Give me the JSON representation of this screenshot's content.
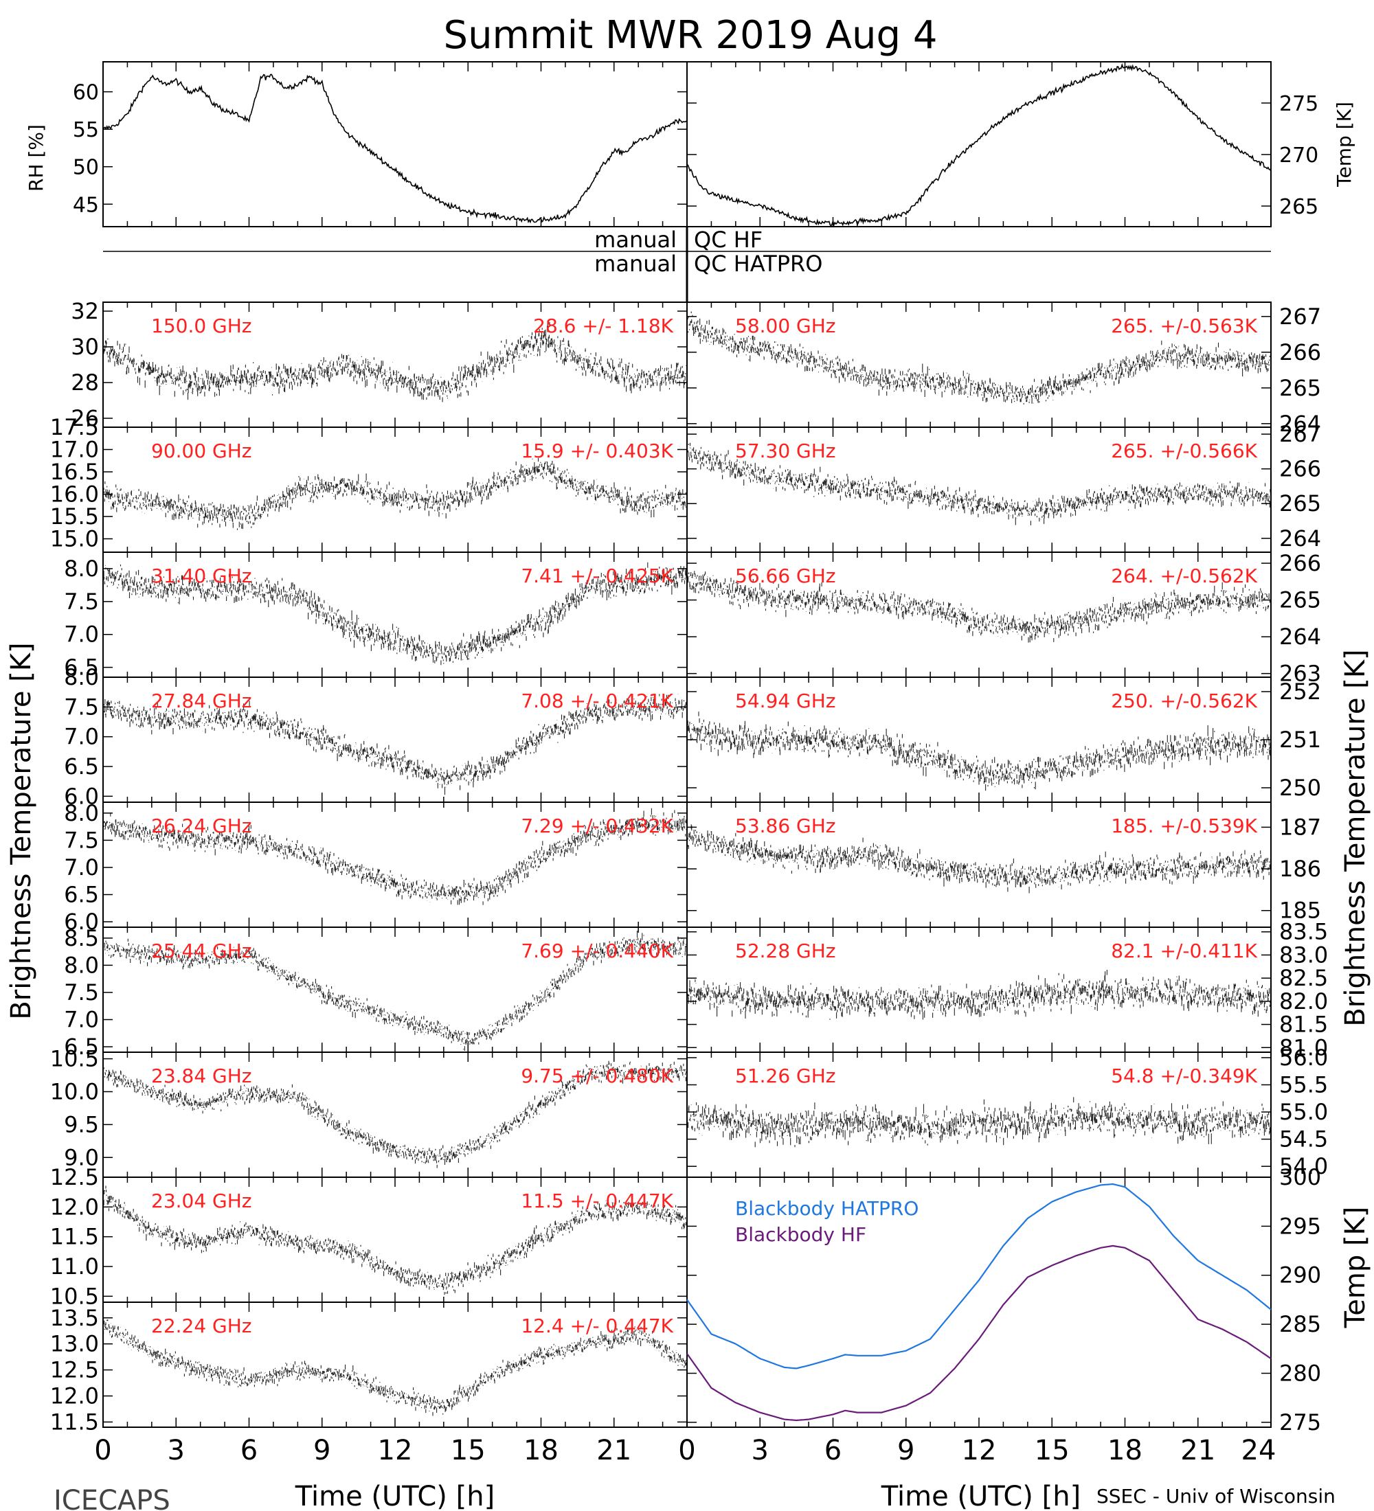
{
  "title": "Summit MWR 2019 Aug  4",
  "footer": {
    "left": "ICECAPS",
    "right": "SSEC - Univ of Wisconsin"
  },
  "qc": {
    "line1_left": "manual",
    "line1_right": "QC HF",
    "line2_left": "manual",
    "line2_right": "QC HATPRO"
  },
  "labels": {
    "xlabel": "Time (UTC) [h]",
    "ylabel_left": "Brightness Temperature [K]",
    "ylabel_right": "Brightness Temperature [K]",
    "rh_ylabel": "RH [%]",
    "temp_ylabel": "Temp [K]",
    "bb_ylabel": "Temp [K]",
    "xticks_left": [
      "0",
      "3",
      "6",
      "9",
      "12",
      "15",
      "18",
      "21"
    ],
    "xticks_right": [
      "0",
      "3",
      "6",
      "9",
      "12",
      "15",
      "18",
      "21",
      "24"
    ]
  },
  "colors": {
    "annotation": "#ff2020",
    "blackbody_hatpro": "#1f77e0",
    "blackbody_hf": "#6a1b7a",
    "data": "#000000"
  },
  "chart_data": [
    {
      "id": "rh",
      "type": "line",
      "ylabel": "RH [%]",
      "xlim": [
        0,
        24
      ],
      "ylim": [
        42,
        64
      ],
      "yticks": [
        45,
        50,
        55,
        60
      ],
      "x": [
        0,
        0.5,
        1,
        1.5,
        2,
        2.5,
        3,
        3.5,
        4,
        4.5,
        5,
        5.5,
        6,
        6.5,
        7,
        7.5,
        8,
        8.5,
        9,
        9.5,
        10,
        11,
        12,
        13,
        14,
        15,
        16,
        17,
        18,
        18.5,
        19,
        19.5,
        20,
        20.5,
        21,
        21.5,
        22,
        22.5,
        23,
        23.5,
        24
      ],
      "y": [
        55,
        55.5,
        57,
        60,
        62,
        61,
        61.5,
        60,
        60.5,
        58.5,
        57.5,
        57,
        56,
        62,
        62,
        60.5,
        61,
        62,
        61,
        57,
        54.5,
        52,
        49.5,
        47,
        45,
        44,
        43.5,
        43,
        42.8,
        43,
        43.5,
        45,
        47.5,
        50,
        52,
        52,
        53.5,
        54,
        55,
        56,
        56
      ]
    },
    {
      "id": "temp",
      "type": "line",
      "ylabel": "Temp [K]",
      "xlim": [
        0,
        24
      ],
      "ylim": [
        263,
        279
      ],
      "yticks": [
        265,
        270,
        275
      ],
      "x": [
        0,
        0.5,
        1,
        1.5,
        2,
        3,
        4,
        5,
        6,
        7,
        8,
        9,
        9.5,
        10,
        11,
        12,
        13,
        14,
        15,
        16,
        17,
        17.5,
        18,
        18.5,
        19,
        20,
        21,
        22,
        23,
        24
      ],
      "y": [
        269,
        267,
        266.2,
        265.8,
        265.5,
        265,
        264.2,
        263.5,
        263.3,
        263.5,
        263.7,
        264.3,
        265.5,
        267,
        269.5,
        271.5,
        273.5,
        275,
        276,
        277,
        278,
        278.2,
        278.5,
        278.4,
        278,
        276,
        273.5,
        271.5,
        270,
        268.5
      ]
    },
    {
      "id": "l150",
      "column": "left",
      "row": 0,
      "label": "150.0 GHz",
      "stat": "28.6 +/- 1.18K",
      "ylim": [
        25.5,
        32.5
      ],
      "yticks": [
        26,
        28,
        30,
        32
      ],
      "x": [
        0,
        2,
        4,
        6,
        8,
        10,
        12,
        14,
        16,
        18,
        20,
        22,
        24
      ],
      "y": [
        30,
        28.5,
        28,
        28.2,
        28.3,
        29,
        28.2,
        27.6,
        29,
        30.5,
        29,
        28.2,
        28.5
      ],
      "noise": 1.2
    },
    {
      "id": "l90",
      "column": "left",
      "row": 1,
      "label": "90.00 GHz",
      "stat": "15.9 +/- 0.403K",
      "ylim": [
        14.7,
        17.5
      ],
      "yticks": [
        15.0,
        15.5,
        16.0,
        16.5,
        17.0,
        17.5
      ],
      "x": [
        0,
        2,
        4,
        6,
        8,
        10,
        12,
        14,
        16,
        18,
        20,
        22,
        24
      ],
      "y": [
        16,
        15.8,
        15.6,
        15.5,
        16.1,
        16.2,
        15.9,
        15.8,
        16.2,
        16.6,
        16.1,
        15.8,
        15.9
      ],
      "noise": 0.4
    },
    {
      "id": "l3140",
      "column": "left",
      "row": 2,
      "label": "31.40 GHz",
      "stat": "7.41 +/- 0.425K",
      "ylim": [
        6.35,
        8.25
      ],
      "yticks": [
        6.5,
        7.0,
        7.5,
        8.0
      ],
      "x": [
        0,
        2,
        4,
        6,
        8,
        10,
        12,
        14,
        16,
        18,
        20,
        22,
        24
      ],
      "y": [
        7.9,
        7.7,
        7.7,
        7.7,
        7.6,
        7.1,
        6.9,
        6.7,
        6.9,
        7.2,
        7.7,
        7.8,
        7.9
      ],
      "noise": 0.3
    },
    {
      "id": "l2784",
      "column": "left",
      "row": 3,
      "label": "27.84 GHz",
      "stat": "7.08 +/- 0.421K",
      "ylim": [
        5.9,
        8.0
      ],
      "yticks": [
        6.0,
        6.5,
        7.0,
        7.5,
        8.0
      ],
      "x": [
        0,
        2,
        4,
        6,
        8,
        10,
        12,
        14,
        16,
        18,
        20,
        22,
        24
      ],
      "y": [
        7.5,
        7.3,
        7.3,
        7.3,
        7.1,
        6.8,
        6.6,
        6.3,
        6.5,
        7.0,
        7.4,
        7.5,
        7.5
      ],
      "noise": 0.3
    },
    {
      "id": "l2624",
      "column": "left",
      "row": 4,
      "label": "26.24 GHz",
      "stat": "7.29 +/- 0.432K",
      "ylim": [
        5.9,
        8.2
      ],
      "yticks": [
        6.0,
        6.5,
        7.0,
        7.5,
        8.0
      ],
      "x": [
        0,
        2,
        4,
        6,
        8,
        10,
        12,
        14,
        16,
        18,
        20,
        22,
        24
      ],
      "y": [
        7.8,
        7.6,
        7.5,
        7.5,
        7.3,
        7.0,
        6.7,
        6.5,
        6.6,
        7.2,
        7.6,
        7.8,
        7.8
      ],
      "noise": 0.3
    },
    {
      "id": "l2544",
      "column": "left",
      "row": 5,
      "label": "25.44 GHz",
      "stat": "7.69 +/- 0.440K",
      "ylim": [
        6.4,
        8.7
      ],
      "yticks": [
        6.5,
        7.0,
        7.5,
        8.0,
        8.5
      ],
      "x": [
        0,
        2,
        4,
        6,
        8,
        10,
        12,
        14,
        15,
        16,
        18,
        20,
        22,
        24
      ],
      "y": [
        8.3,
        8.2,
        8.1,
        8.2,
        7.7,
        7.3,
        7.0,
        6.8,
        6.6,
        6.8,
        7.4,
        8.2,
        8.4,
        8.3
      ],
      "noise": 0.25
    },
    {
      "id": "l2384",
      "column": "left",
      "row": 6,
      "label": "23.84 GHz",
      "stat": "9.75 +/- 0.480K",
      "ylim": [
        8.7,
        10.6
      ],
      "yticks": [
        9.0,
        9.5,
        10.0,
        10.5
      ],
      "x": [
        0,
        2,
        4,
        6,
        8,
        10,
        12,
        14,
        16,
        18,
        20,
        22,
        24
      ],
      "y": [
        10.3,
        10.0,
        9.8,
        10.0,
        9.9,
        9.4,
        9.1,
        9.0,
        9.3,
        9.8,
        10.3,
        10.3,
        10.3
      ],
      "noise": 0.2
    },
    {
      "id": "l2304",
      "column": "left",
      "row": 7,
      "label": "23.04 GHz",
      "stat": "11.5 +/- 0.447K",
      "ylim": [
        10.4,
        12.5
      ],
      "yticks": [
        10.5,
        11.0,
        11.5,
        12.0,
        12.5
      ],
      "x": [
        0,
        2,
        4,
        6,
        8,
        10,
        12,
        14,
        16,
        18,
        20,
        22,
        24
      ],
      "y": [
        12.2,
        11.6,
        11.4,
        11.6,
        11.4,
        11.3,
        10.9,
        10.7,
        11.0,
        11.5,
        11.9,
        12.0,
        11.8
      ],
      "noise": 0.25
    },
    {
      "id": "l2224",
      "column": "left",
      "row": 8,
      "label": "22.24 GHz",
      "stat": "12.4 +/- 0.447K",
      "ylim": [
        11.4,
        13.8
      ],
      "yticks": [
        11.5,
        12.0,
        12.5,
        13.0,
        13.5
      ],
      "x": [
        0,
        2,
        4,
        6,
        8,
        10,
        12,
        14,
        16,
        18,
        20,
        22,
        24
      ],
      "y": [
        13.4,
        12.8,
        12.5,
        12.3,
        12.5,
        12.4,
        12.0,
        11.8,
        12.4,
        12.8,
        13.0,
        13.2,
        12.6
      ],
      "noise": 0.25
    },
    {
      "id": "r5800",
      "column": "right",
      "row": 0,
      "label": "58.00 GHz",
      "stat": "265. +/-0.563K",
      "ylim": [
        263.9,
        267.4
      ],
      "yticks": [
        264,
        265,
        266,
        267
      ],
      "x": [
        0,
        2,
        4,
        6,
        8,
        10,
        12,
        14,
        16,
        18,
        20,
        22,
        24
      ],
      "y": [
        266.8,
        266.2,
        266,
        265.6,
        265.2,
        265.2,
        265,
        264.8,
        265.2,
        265.6,
        265.9,
        265.8,
        265.7
      ],
      "noise": 0.5
    },
    {
      "id": "r5730",
      "column": "right",
      "row": 1,
      "label": "57.30 GHz",
      "stat": "265. +/-0.566K",
      "ylim": [
        263.6,
        267.2
      ],
      "yticks": [
        264,
        265,
        266,
        267
      ],
      "x": [
        0,
        2,
        4,
        6,
        8,
        10,
        12,
        14,
        16,
        18,
        20,
        22,
        24
      ],
      "y": [
        266.5,
        266,
        265.7,
        265.5,
        265.4,
        265.2,
        265,
        264.8,
        265,
        265.2,
        265.3,
        265.3,
        265.2
      ],
      "noise": 0.5
    },
    {
      "id": "r5666",
      "column": "right",
      "row": 2,
      "label": "56.66 GHz",
      "stat": "264. +/-0.562K",
      "ylim": [
        262.9,
        266.3
      ],
      "yticks": [
        263,
        264,
        265,
        266
      ],
      "x": [
        0,
        2,
        4,
        6,
        8,
        10,
        12,
        14,
        16,
        18,
        20,
        22,
        24
      ],
      "y": [
        265.6,
        265.2,
        265,
        265,
        264.9,
        264.8,
        264.4,
        264.2,
        264.4,
        264.7,
        264.9,
        265,
        265
      ],
      "noise": 0.5
    },
    {
      "id": "r5494",
      "column": "right",
      "row": 3,
      "label": "54.94 GHz",
      "stat": "250. +/-0.562K",
      "ylim": [
        249.7,
        252.3
      ],
      "yticks": [
        250,
        251,
        252
      ],
      "x": [
        0,
        2,
        4,
        6,
        8,
        10,
        12,
        14,
        16,
        18,
        20,
        22,
        24
      ],
      "y": [
        251.2,
        251,
        251,
        251,
        250.9,
        250.6,
        250.3,
        250.3,
        250.5,
        250.7,
        250.8,
        250.9,
        250.9
      ],
      "noise": 0.45
    },
    {
      "id": "r5386",
      "column": "right",
      "row": 4,
      "label": "53.86 GHz",
      "stat": "185. +/-0.539K",
      "ylim": [
        184.6,
        187.6
      ],
      "yticks": [
        185,
        186,
        187
      ],
      "x": [
        0,
        2,
        4,
        6,
        8,
        10,
        12,
        14,
        16,
        18,
        20,
        22,
        24
      ],
      "y": [
        186.8,
        186.5,
        186.3,
        186.3,
        186.3,
        186,
        185.9,
        185.8,
        185.9,
        186,
        186,
        186.1,
        186.1
      ],
      "noise": 0.45
    },
    {
      "id": "r5228",
      "column": "right",
      "row": 5,
      "label": "52.28 GHz",
      "stat": "82.1 +/-0.411K",
      "ylim": [
        80.9,
        83.6
      ],
      "yticks": [
        81.0,
        81.5,
        82.0,
        82.5,
        83.0,
        83.5
      ],
      "x": [
        0,
        2,
        4,
        6,
        8,
        10,
        12,
        14,
        16,
        18,
        20,
        22,
        24
      ],
      "y": [
        82.2,
        82.1,
        82,
        82,
        82,
        82,
        82,
        82.1,
        82.2,
        82.2,
        82.2,
        82.1,
        82.1
      ],
      "noise": 0.5
    },
    {
      "id": "r5126",
      "column": "right",
      "row": 6,
      "label": "51.26 GHz",
      "stat": "54.8 +/-0.349K",
      "ylim": [
        53.8,
        56.1
      ],
      "yticks": [
        54.0,
        54.5,
        55.0,
        55.5,
        56.0
      ],
      "x": [
        0,
        2,
        4,
        6,
        8,
        10,
        12,
        14,
        16,
        18,
        20,
        22,
        24
      ],
      "y": [
        54.9,
        54.8,
        54.7,
        54.8,
        54.8,
        54.7,
        54.8,
        54.8,
        54.9,
        54.9,
        54.8,
        54.8,
        54.8
      ],
      "noise": 0.45
    },
    {
      "id": "bb",
      "type": "line",
      "ylabel": "Temp [K]",
      "xlim": [
        0,
        24
      ],
      "ylim": [
        274.5,
        300
      ],
      "yticks": [
        275,
        280,
        285,
        290,
        295,
        300
      ],
      "series": [
        {
          "name": "Blackbody HATPRO",
          "x": [
            0,
            1,
            2,
            3,
            4,
            4.5,
            5,
            6,
            6.5,
            7,
            8,
            9,
            10,
            11,
            12,
            13,
            14,
            15,
            16,
            17,
            17.5,
            18,
            19,
            20,
            21,
            22,
            23,
            24
          ],
          "y": [
            287.5,
            284,
            283,
            281.5,
            280.6,
            280.5,
            280.8,
            281.5,
            281.9,
            281.8,
            281.8,
            282.3,
            283.5,
            286.5,
            289.5,
            293,
            295.8,
            297.5,
            298.5,
            299.2,
            299.3,
            299,
            297,
            294,
            291.5,
            290,
            288.5,
            286.5
          ]
        },
        {
          "name": "Blackbody HF",
          "x": [
            0,
            1,
            2,
            3,
            4,
            4.5,
            5,
            6,
            6.5,
            7,
            8,
            9,
            10,
            11,
            12,
            13,
            14,
            15,
            16,
            17,
            17.5,
            18,
            19,
            20,
            21,
            22,
            23,
            24
          ],
          "y": [
            282,
            278.5,
            277,
            276,
            275.3,
            275.2,
            275.3,
            275.8,
            276.2,
            276,
            276,
            276.7,
            278,
            280.5,
            283.5,
            287,
            289.8,
            291,
            292,
            292.8,
            293,
            292.8,
            291.5,
            288.5,
            285.5,
            284.5,
            283.2,
            281.5
          ]
        }
      ]
    }
  ]
}
